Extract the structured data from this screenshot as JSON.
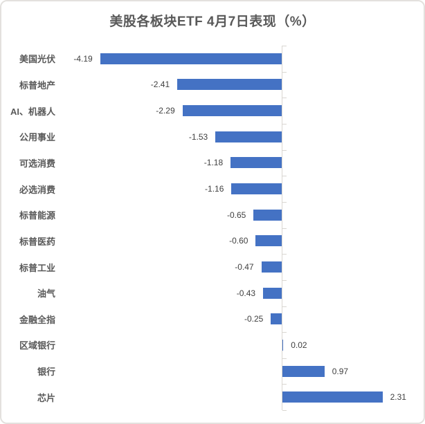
{
  "chart_data": {
    "type": "bar",
    "orientation": "horizontal",
    "title": "美股各板块ETF 4月7日表现（%）",
    "categories": [
      "美国光伏",
      "标普地产",
      "AI、机器人",
      "公用事业",
      "可选消费",
      "必选消费",
      "标普能源",
      "标普医药",
      "标普工业",
      "油气",
      "金融全指",
      "区域银行",
      "银行",
      "芯片"
    ],
    "values": [
      -4.19,
      -2.41,
      -2.29,
      -1.53,
      -1.18,
      -1.16,
      -0.65,
      -0.6,
      -0.47,
      -0.43,
      -0.25,
      0.02,
      0.97,
      2.31
    ],
    "value_decimals": 2,
    "xlim": [
      -5.0,
      3.3
    ],
    "gridlines": false,
    "legend": false,
    "data_labels": "outside-end",
    "colors": {
      "bar": "#4472c4",
      "axis": "#d9d6d1",
      "category_label": "#595959",
      "value_label": "#404040",
      "title": "#595959",
      "background": "#ffffff",
      "frame_border": "#e3e1de"
    }
  }
}
